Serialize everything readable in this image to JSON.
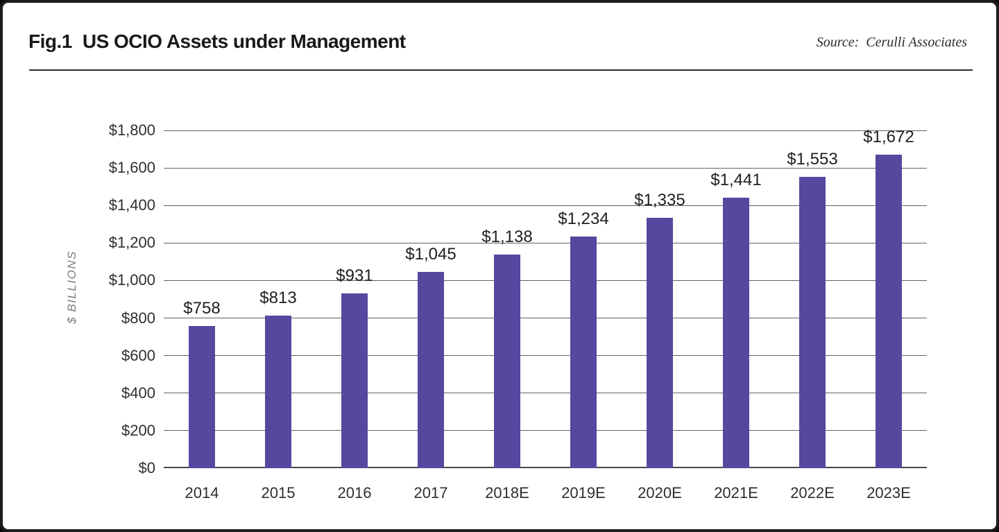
{
  "figure": {
    "fig_label": "Fig.1",
    "title": "US OCIO Assets under Management",
    "source_label": "Source:",
    "source_value": "Cerulli Associates"
  },
  "chart_data": {
    "type": "bar",
    "title": "US OCIO Assets under Management",
    "categories": [
      "2014",
      "2015",
      "2016",
      "2017",
      "2018E",
      "2019E",
      "2020E",
      "2021E",
      "2022E",
      "2023E"
    ],
    "values": [
      758,
      813,
      931,
      1045,
      1138,
      1234,
      1335,
      1441,
      1553,
      1672
    ],
    "value_labels": [
      "$758",
      "$813",
      "$931",
      "$1,045",
      "$1,138",
      "$1,234",
      "$1,335",
      "$1,441",
      "$1,553",
      "$1,672"
    ],
    "xlabel": "",
    "ylabel": "$ BILLIONS",
    "ylim": [
      0,
      1800
    ],
    "ytick_step": 200,
    "ytick_labels": [
      "$0",
      "$200",
      "$400",
      "$600",
      "$800",
      "$1,000",
      "$1,200",
      "$1,400",
      "$1,600",
      "$1,800"
    ],
    "grid": true,
    "legend": "none"
  },
  "colors": {
    "bar": "#56489e",
    "grid": "#616161",
    "axis": "#474747",
    "text": "#1f1f1f",
    "muted": "#7d7d7d",
    "frame": "#1c1c1c",
    "background": "#ffffff"
  }
}
